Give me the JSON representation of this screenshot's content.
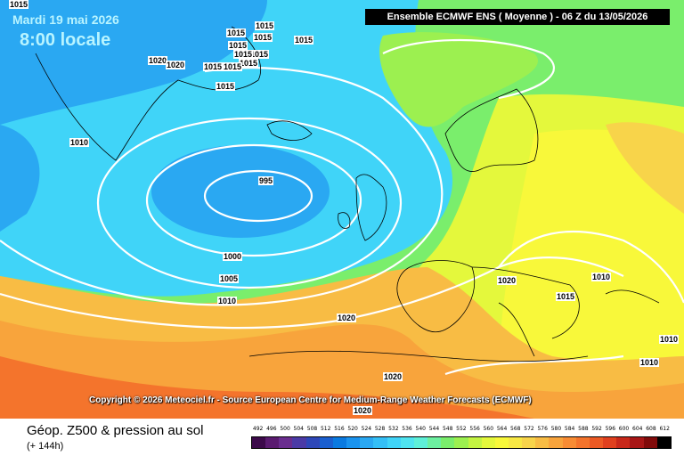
{
  "header": {
    "date": "Mardi 19 mai 2026",
    "time": "8:00 locale",
    "model_run": "Ensemble ECMWF ENS  ( Moyenne )  -  06 Z du 13/05/2026"
  },
  "copyright": "Copyright © 2026 Meteociel.fr - Source European Centre for Medium-Range Weather Forecasts (ECMWF)",
  "isobar_labels": [
    "1015",
    "1015",
    "1015",
    "1015",
    "1015",
    "1015",
    "1015",
    "1015",
    "1020",
    "1020",
    "1015",
    "1015",
    "1015",
    "1015",
    "1010",
    "995",
    "1000",
    "1005",
    "1010",
    "1020",
    "1020",
    "1015",
    "1010",
    "1010",
    "1020",
    "1010",
    "1020"
  ],
  "footer": {
    "field_title": "Géop. Z500 & pression au sol",
    "lead_time": "(+ 144h)"
  },
  "scale": {
    "labels": [
      "492",
      "496",
      "500",
      "504",
      "508",
      "512",
      "516",
      "520",
      "524",
      "528",
      "532",
      "536",
      "540",
      "544",
      "548",
      "552",
      "556",
      "560",
      "564",
      "568",
      "572",
      "576",
      "580",
      "584",
      "588",
      "592",
      "596",
      "600",
      "604",
      "608",
      "612"
    ],
    "colors": [
      "#3c0a4a",
      "#5a1b70",
      "#6a2d8f",
      "#4b3aa6",
      "#2e47b8",
      "#1a5fd0",
      "#0a7ae0",
      "#1a93ee",
      "#2aa8f2",
      "#34bff6",
      "#40d4f8",
      "#4fe4f0",
      "#5ef0d8",
      "#6cf0a0",
      "#7aee6c",
      "#9cf050",
      "#c4f442",
      "#e4f83c",
      "#f8f83a",
      "#f8e844",
      "#f8d44a",
      "#f8bc44",
      "#f8a43c",
      "#f88c34",
      "#f4742c",
      "#ec5a24",
      "#e0401e",
      "#c8281a",
      "#a81616",
      "#800a0a",
      "#000000"
    ]
  },
  "legend_colors": {
    "cyan": "#40d4f8",
    "blue": "#1a93ee",
    "green": "#7aee6c",
    "yellow": "#f8f83a",
    "orange": "#f8a43c",
    "red": "#ec5a24"
  }
}
